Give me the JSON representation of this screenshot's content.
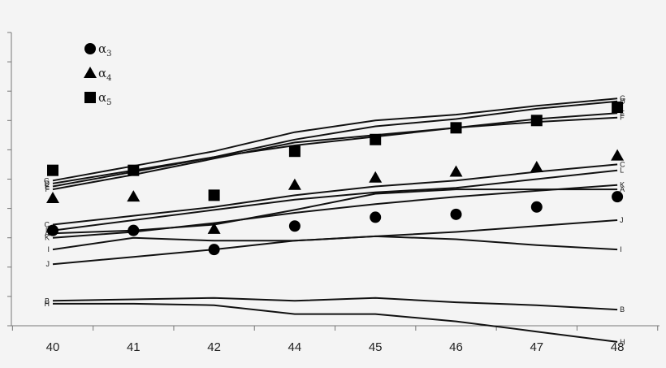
{
  "chart_data": {
    "type": "line",
    "title": "",
    "xlabel": "",
    "ylabel": "",
    "x": [
      "40",
      "41",
      "42",
      "44",
      "45",
      "46",
      "47",
      "48"
    ],
    "ylim": [
      0,
      10
    ],
    "grid": false,
    "y_ticks_labeled": false,
    "legend_position": "top-left",
    "legend": [
      {
        "symbol": "circle",
        "base": "α",
        "sub": "3"
      },
      {
        "symbol": "triangle",
        "base": "α",
        "sub": "4"
      },
      {
        "symbol": "square",
        "base": "α",
        "sub": "5"
      }
    ],
    "lines": [
      {
        "name": "G",
        "values": [
          4.95,
          5.45,
          5.95,
          6.6,
          7.0,
          7.2,
          7.5,
          7.75
        ]
      },
      {
        "name": "D",
        "values": [
          4.85,
          5.3,
          5.75,
          6.35,
          6.8,
          7.05,
          7.4,
          7.65
        ]
      },
      {
        "name": "E",
        "values": [
          4.75,
          5.25,
          5.75,
          6.15,
          6.45,
          6.75,
          7.05,
          7.25
        ]
      },
      {
        "name": "F",
        "values": [
          4.65,
          5.15,
          5.7,
          6.25,
          6.5,
          6.75,
          6.95,
          7.1
        ]
      },
      {
        "name": "C",
        "values": [
          3.45,
          3.75,
          4.05,
          4.45,
          4.75,
          4.95,
          5.25,
          5.5
        ]
      },
      {
        "name": "L",
        "values": [
          3.25,
          3.6,
          3.95,
          4.3,
          4.55,
          4.7,
          5.0,
          5.3
        ]
      },
      {
        "name": "K",
        "values": [
          3.0,
          3.2,
          3.5,
          3.85,
          4.15,
          4.4,
          4.6,
          4.8
        ]
      },
      {
        "name": "A",
        "values": [
          3.15,
          3.25,
          3.45,
          3.95,
          4.5,
          4.65,
          4.65,
          4.65
        ]
      },
      {
        "name": "J",
        "values": [
          2.1,
          2.35,
          2.6,
          2.9,
          3.05,
          3.2,
          3.4,
          3.6
        ]
      },
      {
        "name": "I",
        "values": [
          2.6,
          3.0,
          2.9,
          2.9,
          3.05,
          2.95,
          2.75,
          2.6
        ]
      },
      {
        "name": "B",
        "values": [
          0.85,
          0.9,
          0.95,
          0.85,
          0.95,
          0.8,
          0.7,
          0.55
        ]
      },
      {
        "name": "H",
        "values": [
          0.75,
          0.75,
          0.7,
          0.4,
          0.4,
          0.15,
          -0.2,
          -0.55
        ]
      }
    ],
    "series": [
      {
        "name": "α3",
        "marker": "circle",
        "values": [
          3.25,
          3.25,
          2.6,
          3.4,
          3.7,
          3.8,
          4.05,
          4.4
        ]
      },
      {
        "name": "α4",
        "marker": "triangle",
        "values": [
          4.35,
          4.4,
          3.3,
          4.8,
          5.05,
          5.25,
          5.4,
          5.8
        ]
      },
      {
        "name": "α5",
        "marker": "square",
        "values": [
          5.3,
          5.3,
          4.45,
          5.95,
          6.35,
          6.75,
          7.0,
          7.45
        ]
      }
    ]
  }
}
